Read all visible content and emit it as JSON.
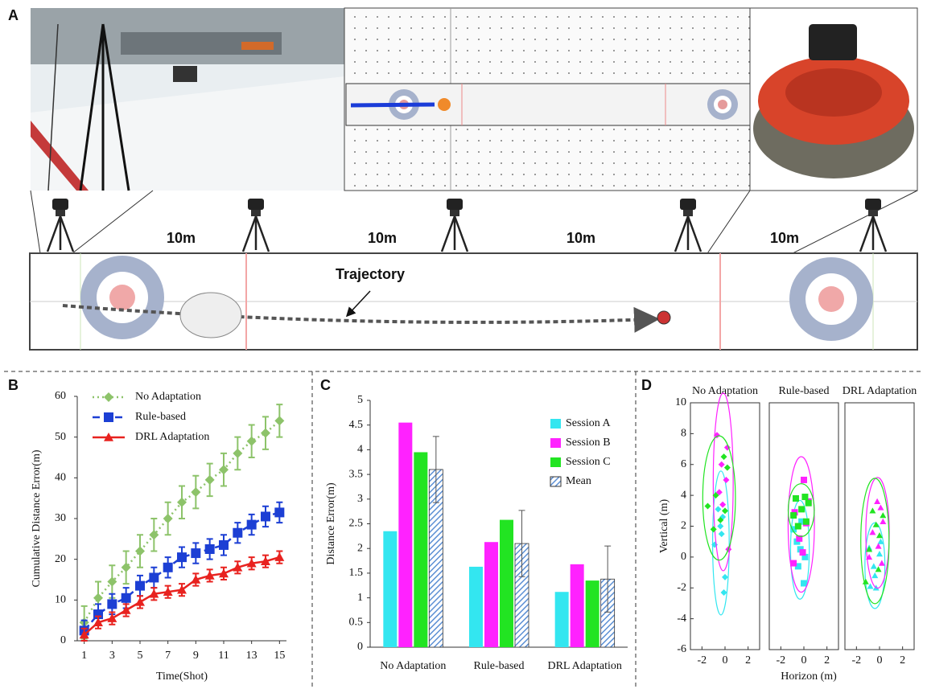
{
  "figure_a": {
    "label": "A",
    "distances": [
      "10m",
      "10m",
      "10m",
      "10m"
    ],
    "annotation": "Trajectory"
  },
  "chart_data": [
    {
      "type": "line",
      "panel": "B",
      "xlabel": "Time(Shot)",
      "ylabel": "Cumulative Distance Error(m)",
      "x": [
        1,
        2,
        3,
        4,
        5,
        6,
        7,
        8,
        9,
        10,
        11,
        12,
        13,
        14,
        15
      ],
      "xlim": [
        0.5,
        15.5
      ],
      "xticks": [
        1,
        3,
        5,
        7,
        9,
        11,
        13,
        15
      ],
      "ylim": [
        0,
        60
      ],
      "yticks": [
        0,
        10,
        20,
        30,
        40,
        50,
        60
      ],
      "legend": "upper left",
      "series": [
        {
          "name": "No Adaptation",
          "color": "#8dc36a",
          "marker": "diamond",
          "linestyle": "dotted",
          "values": [
            4.5,
            10.5,
            14.5,
            18,
            22,
            26,
            30,
            34,
            36.5,
            39.5,
            42,
            46,
            49,
            51,
            54
          ],
          "errors": [
            4,
            4,
            4,
            4,
            4,
            4,
            4,
            4,
            4,
            4,
            4,
            4,
            4,
            4,
            4
          ]
        },
        {
          "name": "Rule-based",
          "color": "#1c3fd4",
          "marker": "square",
          "linestyle": "dashed",
          "values": [
            2.5,
            6.5,
            9,
            10.5,
            13.5,
            15.5,
            18,
            20.5,
            21.5,
            22.5,
            23.5,
            26.5,
            28.5,
            30.5,
            31.5
          ],
          "errors": [
            2.5,
            2.5,
            2.5,
            2.5,
            2.5,
            2.5,
            2.5,
            2.5,
            2.5,
            2.5,
            2.5,
            2.5,
            2.5,
            2.5,
            2.5
          ]
        },
        {
          "name": "DRL Adaptation",
          "color": "#e8221f",
          "marker": "triangle",
          "linestyle": "solid",
          "values": [
            1.5,
            4.5,
            5.5,
            7.5,
            9.5,
            11.5,
            12,
            12.5,
            15,
            16,
            16.5,
            18,
            19,
            19.5,
            20.5
          ],
          "errors": [
            1.5,
            1.5,
            1.5,
            1.5,
            1.5,
            1.5,
            1.5,
            1.5,
            1.5,
            1.5,
            1.5,
            1.5,
            1.5,
            1.5,
            1.5
          ]
        }
      ]
    },
    {
      "type": "bar",
      "panel": "C",
      "ylabel": "Distance Error(m)",
      "categories": [
        "No Adaptation",
        "Rule-based",
        "DRL Adaptation"
      ],
      "ylim": [
        0,
        5
      ],
      "yticks": [
        0,
        0.5,
        1,
        1.5,
        2,
        2.5,
        3,
        3.5,
        4,
        4.5,
        5
      ],
      "legend": "upper right",
      "series": [
        {
          "name": "Session A",
          "color": "#33e6f0",
          "values": [
            2.35,
            1.63,
            1.12
          ]
        },
        {
          "name": "Session B",
          "color": "#ff22ff",
          "values": [
            4.55,
            2.13,
            1.68
          ]
        },
        {
          "name": "Session C",
          "color": "#22e422",
          "values": [
            3.95,
            2.58,
            1.35
          ]
        },
        {
          "name": "Mean",
          "color": "#5b8fd4",
          "hatch": true,
          "values": [
            3.6,
            2.1,
            1.38
          ],
          "errors": [
            0.67,
            0.67,
            0.67
          ]
        }
      ]
    },
    {
      "type": "scatter",
      "panel": "D",
      "xlabel": "Horizon (m)",
      "ylabel": "Vertical (m)",
      "xlim": [
        -3,
        3
      ],
      "xticks": [
        -2,
        0,
        2
      ],
      "ylim": [
        -6,
        10
      ],
      "yticks": [
        -6,
        -4,
        -2,
        0,
        2,
        4,
        6,
        8,
        10
      ],
      "subplots": [
        {
          "title": "No Adaptation",
          "marker": "diamond",
          "series": [
            {
              "color": "#33e6f0",
              "x": [
                -0.9,
                -0.4,
                -0.2,
                0.0,
                -0.6,
                -0.3,
                -0.1
              ],
              "y": [
                0.8,
                2.0,
                2.6,
                -1.3,
                3.1,
                1.5,
                -2.3
              ]
            },
            {
              "color": "#ff22ff",
              "x": [
                -0.7,
                0.2,
                -0.3,
                0.1,
                -0.5,
                0.3,
                -0.2
              ],
              "y": [
                7.9,
                7.1,
                6.0,
                5.0,
                4.2,
                0.5,
                3.4
              ]
            },
            {
              "color": "#22e422",
              "x": [
                -1.5,
                -0.1,
                0.2,
                -0.8,
                0.0,
                -0.4,
                -1.0
              ],
              "y": [
                3.3,
                6.5,
                5.8,
                4.0,
                3.0,
                2.4,
                1.8
              ]
            }
          ]
        },
        {
          "title": "Rule-based",
          "marker": "square",
          "series": [
            {
              "color": "#33e6f0",
              "x": [
                -0.9,
                -0.3,
                0.0,
                -0.6,
                -0.2,
                0.1,
                -0.5
              ],
              "y": [
                1.8,
                0.5,
                -1.7,
                1.0,
                2.3,
                0.0,
                -0.6
              ]
            },
            {
              "color": "#ff22ff",
              "x": [
                0.0,
                -0.8,
                0.4,
                -0.4,
                -0.1,
                -0.9,
                0.2
              ],
              "y": [
                5.0,
                2.9,
                3.6,
                1.2,
                0.3,
                -0.4,
                2.2
              ]
            },
            {
              "color": "#22e422",
              "x": [
                -0.7,
                0.1,
                0.4,
                -0.2,
                -0.9,
                0.2,
                -0.5
              ],
              "y": [
                3.8,
                3.9,
                3.5,
                3.1,
                2.7,
                2.3,
                2.0
              ]
            }
          ]
        },
        {
          "title": "DRL Adaptation",
          "marker": "triangle",
          "series": [
            {
              "color": "#33e6f0",
              "x": [
                -0.8,
                -0.3,
                0.0,
                -0.5,
                0.1,
                -0.9,
                -0.4
              ],
              "y": [
                -1.9,
                -2.0,
                0.2,
                -0.6,
                1.0,
                0.6,
                -1.2
              ]
            },
            {
              "color": "#ff22ff",
              "x": [
                -0.2,
                0.1,
                0.3,
                -0.6,
                -0.1,
                -0.9,
                0.2
              ],
              "y": [
                3.6,
                3.2,
                2.3,
                1.6,
                0.7,
                0.0,
                -0.4
              ]
            },
            {
              "color": "#22e422",
              "x": [
                -0.6,
                0.3,
                -0.3,
                0.0,
                -0.9,
                -0.1,
                -1.2
              ],
              "y": [
                3.0,
                2.7,
                2.1,
                1.4,
                0.5,
                -0.8,
                -1.6
              ]
            }
          ]
        }
      ]
    }
  ]
}
